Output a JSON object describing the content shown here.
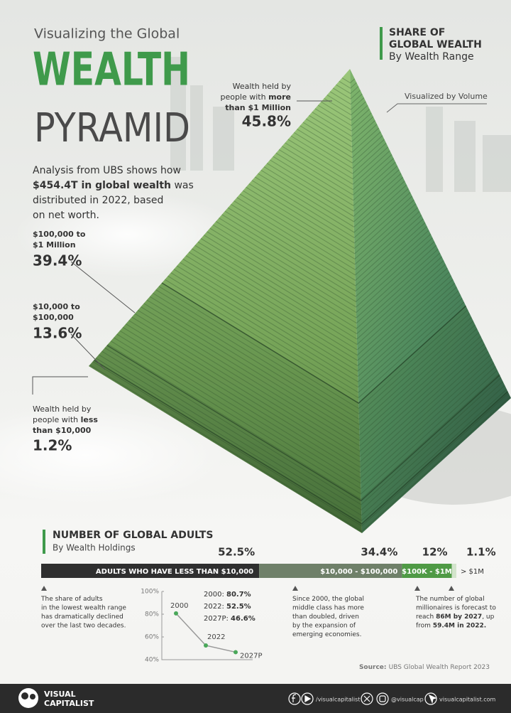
{
  "header": {
    "kicker": "Visualizing the Global",
    "title_top": "WEALTH",
    "title_bottom": "PYRAMID",
    "intro": [
      [
        {
          "text": "Analysis from UBS shows how"
        }
      ],
      [
        {
          "text": "$454.4T in global wealth",
          "bold": true
        },
        {
          "text": " was"
        }
      ],
      [
        {
          "text": "distributed in 2022, based"
        }
      ],
      [
        {
          "text": "on net worth."
        }
      ]
    ]
  },
  "share_legend": {
    "title": [
      [
        {
          "text": "SHARE OF",
          "bold": true
        }
      ],
      [
        {
          "text": "GLOBAL WEALTH",
          "bold": true
        }
      ],
      [
        {
          "text": "By Wealth Range"
        }
      ]
    ],
    "volume_note": "Visualized by Volume"
  },
  "pyramid": {
    "tiers": [
      {
        "label": [
          [
            {
              "text": "Wealth held by"
            }
          ],
          [
            {
              "text": "people with "
            },
            {
              "text": "more",
              "bold": true
            }
          ],
          [
            {
              "text": "than $1 Million",
              "bold": true
            }
          ]
        ],
        "share": "45.8%"
      },
      {
        "label": [
          [
            {
              "text": "$100,000 to",
              "bold": true
            }
          ],
          [
            {
              "text": "$1 Million",
              "bold": true
            }
          ]
        ],
        "share": "39.4%"
      },
      {
        "label": [
          [
            {
              "text": "$10,000 to",
              "bold": true
            }
          ],
          [
            {
              "text": "$100,000",
              "bold": true
            }
          ]
        ],
        "share": "13.6%"
      },
      {
        "label": [
          [
            {
              "text": "Wealth held by"
            }
          ],
          [
            {
              "text": "people with "
            },
            {
              "text": "less",
              "bold": true
            }
          ],
          [
            {
              "text": "than $10,000",
              "bold": true
            }
          ]
        ],
        "share": "1.2%"
      }
    ]
  },
  "chart_data": [
    {
      "type": "stacked-hbar",
      "title": "NUMBER OF GLOBAL ADULTS",
      "subtitle": "By Wealth Holdings",
      "xlim": [
        0,
        100
      ],
      "series": [
        {
          "name": "ADULTS WHO HAVE LESS THAN $10,000",
          "color": "#2f2f2f",
          "values": [
            52.5
          ],
          "value_labels": [
            "52.5%"
          ]
        },
        {
          "name": "$10,000 - $100,000",
          "color": "#6f8069",
          "values": [
            34.4
          ],
          "value_labels": [
            "34.4%"
          ]
        },
        {
          "name": "$100K - $1M",
          "color": "#4f9a45",
          "values": [
            12
          ],
          "value_labels": [
            "12%"
          ]
        },
        {
          "name": "> $1M",
          "color": "#d3e4cc",
          "values": [
            1.1
          ],
          "value_labels": [
            "1.1%"
          ]
        }
      ]
    },
    {
      "type": "line",
      "categories": [
        "2000",
        "2022",
        "2027P"
      ],
      "values": [
        80.7,
        52.5,
        46.6
      ],
      "color": "#4aa85a",
      "ylim": [
        40,
        100
      ],
      "yticks": [
        {
          "value": 100,
          "label": "100%"
        },
        {
          "value": 80,
          "label": "80%"
        },
        {
          "value": 60,
          "label": "60%"
        },
        {
          "value": 40,
          "label": "40%"
        }
      ],
      "stats": [
        [
          {
            "text": "2000: "
          },
          {
            "text": "80.7%",
            "bold": true
          }
        ],
        [
          {
            "text": "2022: "
          },
          {
            "text": "52.5%",
            "bold": true
          }
        ],
        [
          {
            "text": "2027P: "
          },
          {
            "text": "46.6%",
            "bold": true
          }
        ]
      ]
    }
  ],
  "notes": [
    [
      [
        {
          "text": "The share of adults"
        }
      ],
      [
        {
          "text": "in the lowest wealth range"
        }
      ],
      [
        {
          "text": "has dramatically declined"
        }
      ],
      [
        {
          "text": "over the last two decades."
        }
      ]
    ],
    [
      [
        {
          "text": "Since 2000, the global"
        }
      ],
      [
        {
          "text": "middle class has more"
        }
      ],
      [
        {
          "text": "than doubled, driven"
        }
      ],
      [
        {
          "text": "by the expansion of"
        }
      ],
      [
        {
          "text": "emerging economies."
        }
      ]
    ],
    [
      [
        {
          "text": "The number of global"
        }
      ],
      [
        {
          "text": "millionaires is forecast to"
        }
      ],
      [
        {
          "text": "reach "
        },
        {
          "text": "86M by 2027",
          "bold": true
        },
        {
          "text": ", up"
        }
      ],
      [
        {
          "text": "from "
        },
        {
          "text": "59.4M in 2022.",
          "bold": true
        }
      ]
    ]
  ],
  "source": [
    [
      {
        "text": "Source: ",
        "bold": true
      },
      {
        "text": "UBS Global Wealth Report 2023"
      }
    ]
  ],
  "footer": {
    "brand_top": "VISUAL",
    "brand_bottom": "CAPITALIST",
    "handle_1": "/visualcapitalist",
    "handle_2": "@visualcap",
    "website": "visualcapitalist.com"
  }
}
